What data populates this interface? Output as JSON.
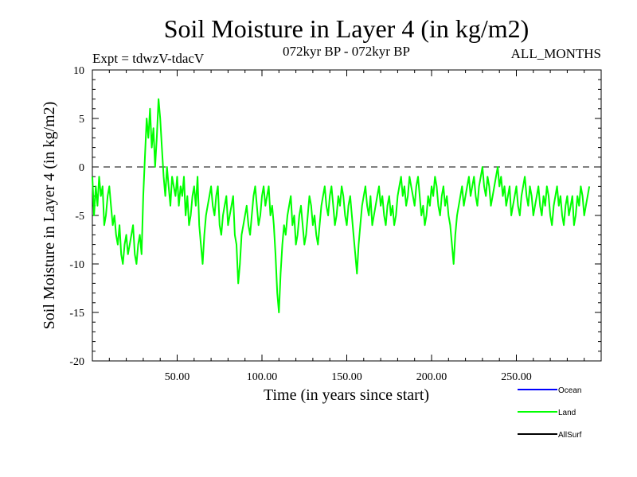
{
  "chart_data": {
    "type": "line",
    "title": "Soil Moisture in Layer 4 (in kg/m2)",
    "subtitle_left": "Expt = tdwzV-tdacV",
    "subtitle_center": "072kyr BP - 072kyr BP",
    "subtitle_right": "ALL_MONTHS",
    "xlabel": "Time (in years since start)",
    "ylabel": "Soil Moisture in Layer 4 (in kg/m2)",
    "xlim": [
      0,
      300
    ],
    "ylim": [
      -20,
      10
    ],
    "x_ticks": [
      50,
      100,
      150,
      200,
      250
    ],
    "x_tick_labels": [
      "50.00",
      "100.00",
      "150.00",
      "200.00",
      "250.00"
    ],
    "y_ticks": [
      10,
      5,
      0,
      -5,
      -10,
      -15,
      -20
    ],
    "y_tick_labels": [
      "10",
      "5",
      "0",
      "-5",
      "-10",
      "-15",
      "-20"
    ],
    "reference_line": 0,
    "legend": [
      {
        "name": "Ocean",
        "color": "#0000ff"
      },
      {
        "name": "Land",
        "color": "#00ff00"
      },
      {
        "name": "AllSurf",
        "color": "#000000"
      }
    ],
    "series": [
      {
        "name": "Land",
        "color": "#00ff00",
        "x_start": 0,
        "x_step": 1,
        "values": [
          -1,
          -5,
          -2,
          -4,
          -1,
          -3,
          -2,
          -6,
          -5,
          -3,
          -2,
          -4,
          -6,
          -5,
          -7,
          -8,
          -6,
          -9,
          -10,
          -8,
          -7,
          -9,
          -8,
          -7,
          -6,
          -9,
          -10,
          -8,
          -7,
          -9,
          -3,
          1,
          5,
          3,
          6,
          2,
          4,
          0,
          3,
          7,
          5,
          2,
          -1,
          -3,
          0,
          -2,
          -4,
          -1,
          -2,
          -3,
          -1,
          -4,
          -2,
          -3,
          -1,
          -5,
          -3,
          -6,
          -5,
          -3,
          -2,
          -4,
          -1,
          -6,
          -8,
          -10,
          -7,
          -5,
          -4,
          -3,
          -2,
          -4,
          -5,
          -3,
          -2,
          -6,
          -7,
          -5,
          -4,
          -3,
          -6,
          -5,
          -4,
          -3,
          -7,
          -8,
          -12,
          -10,
          -7,
          -6,
          -5,
          -4,
          -6,
          -7,
          -5,
          -3,
          -2,
          -4,
          -6,
          -5,
          -3,
          -2,
          -4,
          -3,
          -2,
          -5,
          -4,
          -6,
          -9,
          -13,
          -15,
          -11,
          -8,
          -6,
          -7,
          -5,
          -4,
          -3,
          -6,
          -5,
          -8,
          -7,
          -5,
          -4,
          -6,
          -8,
          -7,
          -5,
          -3,
          -4,
          -6,
          -5,
          -7,
          -8,
          -6,
          -4,
          -3,
          -2,
          -4,
          -5,
          -3,
          -2,
          -4,
          -6,
          -5,
          -3,
          -4,
          -2,
          -3,
          -5,
          -6,
          -4,
          -3,
          -5,
          -7,
          -9,
          -11,
          -8,
          -6,
          -4,
          -3,
          -2,
          -4,
          -5,
          -3,
          -6,
          -5,
          -4,
          -3,
          -2,
          -4,
          -3,
          -5,
          -6,
          -4,
          -3,
          -5,
          -4,
          -6,
          -5,
          -3,
          -2,
          -1,
          -3,
          -2,
          -4,
          -3,
          -1,
          -2,
          -3,
          -4,
          -2,
          -1,
          -3,
          -5,
          -4,
          -6,
          -5,
          -3,
          -4,
          -2,
          -3,
          -1,
          -2,
          -4,
          -5,
          -3,
          -2,
          -4,
          -3,
          -5,
          -6,
          -8,
          -10,
          -7,
          -5,
          -4,
          -3,
          -2,
          -4,
          -3,
          -2,
          -1,
          -3,
          -2,
          -1,
          -3,
          -4,
          -2,
          -1,
          0,
          -2,
          -3,
          -1,
          -2,
          -4,
          -3,
          -2,
          -1,
          0,
          -2,
          -1,
          -3,
          -2,
          -4,
          -3,
          -2,
          -5,
          -4,
          -3,
          -2,
          -4,
          -5,
          -3,
          -2,
          -1,
          -3,
          -4,
          -2,
          -3,
          -5,
          -4,
          -3,
          -2,
          -4,
          -5,
          -3,
          -4,
          -2,
          -3,
          -5,
          -6,
          -4,
          -3,
          -2,
          -4,
          -3,
          -5,
          -6,
          -4,
          -3,
          -5,
          -4,
          -3,
          -6,
          -5,
          -3,
          -4,
          -2,
          -3,
          -5,
          -4,
          -3,
          -2
        ]
      }
    ]
  }
}
